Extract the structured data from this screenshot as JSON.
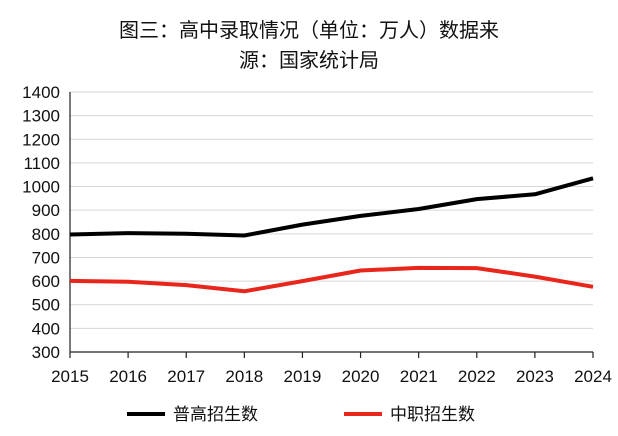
{
  "chart_data": {
    "type": "line",
    "title_line1": "图三：高中录取情况（单位：万人）数据来",
    "title_line2": "源：国家统计局",
    "categories": [
      "2015",
      "2016",
      "2017",
      "2018",
      "2019",
      "2020",
      "2021",
      "2022",
      "2023",
      "2024"
    ],
    "ylim": [
      300,
      1400
    ],
    "yticks": [
      "300",
      "400",
      "500",
      "600",
      "700",
      "800",
      "900",
      "1000",
      "1100",
      "1200",
      "1300",
      "1400"
    ],
    "grid": true,
    "legend_position": "bottom",
    "series": [
      {
        "name": "普高招生数",
        "color": "#000000",
        "values": [
          797,
          803,
          800,
          793,
          839,
          876,
          905,
          947,
          967,
          1035
        ]
      },
      {
        "name": "中职招生数",
        "color": "#e8261b",
        "values": [
          601,
          597,
          583,
          557,
          600,
          645,
          656,
          655,
          619,
          576
        ]
      }
    ]
  }
}
